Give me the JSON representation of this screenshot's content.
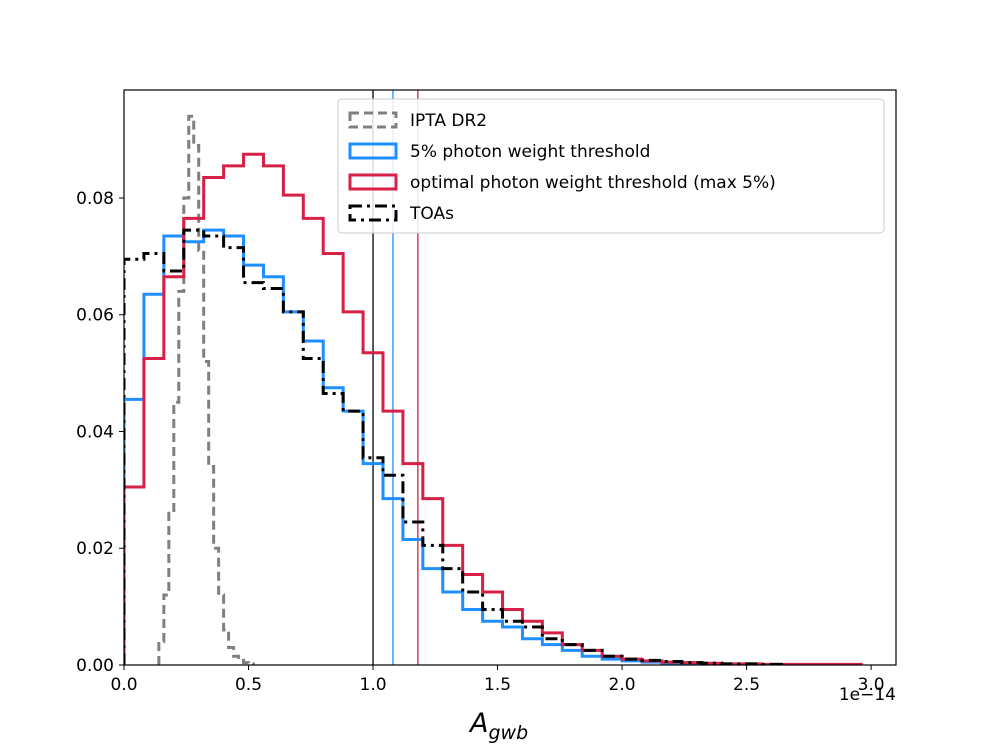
{
  "chart_data": {
    "type": "histogram",
    "xlabel_main": "A",
    "xlabel_sub": "gwb",
    "x_offset_text": "1e−14",
    "xlim": [
      0.0,
      3.1
    ],
    "ylim": [
      0.0,
      0.0985
    ],
    "x_scale_note": "x values in units of 1e-14",
    "xticks": [
      0.0,
      0.5,
      1.0,
      1.5,
      2.0,
      2.5,
      3.0
    ],
    "xtick_labels": [
      "0.0",
      "0.5",
      "1.0",
      "1.5",
      "2.0",
      "2.5",
      "3.0"
    ],
    "yticks": [
      0.0,
      0.02,
      0.04,
      0.06,
      0.08
    ],
    "ytick_labels": [
      "0.00",
      "0.02",
      "0.04",
      "0.06",
      "0.08"
    ],
    "legend_position": "top-right",
    "series": [
      {
        "name": "IPTA DR2",
        "color": "#808080",
        "dash": "dashed",
        "bin_edges": [
          0.14,
          0.16,
          0.18,
          0.2,
          0.22,
          0.24,
          0.26,
          0.28,
          0.3,
          0.32,
          0.34,
          0.36,
          0.38,
          0.4,
          0.42,
          0.44,
          0.46,
          0.48,
          0.5,
          0.52
        ],
        "values": [
          0.004,
          0.012,
          0.026,
          0.045,
          0.064,
          0.08,
          0.094,
          0.089,
          0.071,
          0.052,
          0.034,
          0.02,
          0.012,
          0.006,
          0.003,
          0.0015,
          0.0008,
          0.0004,
          0.0002
        ]
      },
      {
        "name": "5% photon weight threshold",
        "color": "#1f8fff",
        "dash": "solid",
        "bin_start": 0.0,
        "bin_width": 0.08,
        "values": [
          0.0455,
          0.0635,
          0.0735,
          0.0725,
          0.0745,
          0.0735,
          0.0685,
          0.0665,
          0.0605,
          0.0555,
          0.0475,
          0.0435,
          0.0345,
          0.0285,
          0.0215,
          0.0165,
          0.0125,
          0.0095,
          0.0075,
          0.0065,
          0.0045,
          0.0035,
          0.0025,
          0.0015,
          0.001,
          0.0007,
          0.0005,
          0.0003,
          0.0002,
          0.0001
        ]
      },
      {
        "name": "optimal photon weight threshold (max 5%)",
        "color": "#d62045",
        "dash": "solid",
        "bin_start": 0.0,
        "bin_width": 0.08,
        "values": [
          0.0305,
          0.0525,
          0.0665,
          0.0765,
          0.0835,
          0.0855,
          0.0875,
          0.0855,
          0.0805,
          0.0765,
          0.0705,
          0.0605,
          0.0535,
          0.0435,
          0.0345,
          0.0285,
          0.0205,
          0.0155,
          0.0125,
          0.0095,
          0.0075,
          0.0055,
          0.0035,
          0.0025,
          0.0015,
          0.001,
          0.0007,
          0.0005,
          0.0004,
          0.0003,
          0.0002,
          0.0002,
          0.0001,
          0.0001,
          0.0001,
          0.0001,
          0.0001
        ]
      },
      {
        "name": "TOAs",
        "color": "#000000",
        "dash": "dashdot",
        "bin_start": 0.0,
        "bin_width": 0.08,
        "values": [
          0.0695,
          0.0705,
          0.0675,
          0.0745,
          0.0735,
          0.0715,
          0.0655,
          0.0645,
          0.0605,
          0.0525,
          0.0465,
          0.0435,
          0.0355,
          0.0325,
          0.0245,
          0.0205,
          0.0165,
          0.0125,
          0.0095,
          0.0075,
          0.0065,
          0.0045,
          0.0035,
          0.0025,
          0.0015,
          0.001,
          0.0008,
          0.0006,
          0.0004,
          0.0003,
          0.0002,
          0.0002,
          0.0001
        ]
      }
    ],
    "vertical_lines": [
      {
        "name": "TOAs median",
        "x": 1.0,
        "color": "#000000"
      },
      {
        "name": "5% photon weight threshold median",
        "x": 1.08,
        "color": "#1f8fff"
      },
      {
        "name": "optimal photon weight threshold median",
        "x": 1.18,
        "color": "#d62045"
      }
    ]
  }
}
